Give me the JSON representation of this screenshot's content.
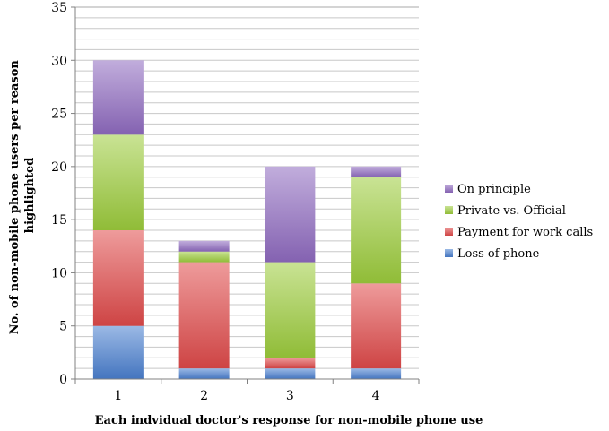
{
  "chart_data": {
    "type": "bar",
    "stacked": true,
    "categories": [
      "1",
      "2",
      "3",
      "4"
    ],
    "series": [
      {
        "name": "Loss of phone",
        "values": [
          5,
          1,
          1,
          1
        ],
        "color": "#4a7fd0"
      },
      {
        "name": "Payment for work calls",
        "values": [
          9,
          10,
          1,
          8
        ],
        "color": "#e04a4a"
      },
      {
        "name": "Private vs. Official",
        "values": [
          9,
          1,
          9,
          10
        ],
        "color": "#9ccc3c"
      },
      {
        "name": "On principle",
        "values": [
          7,
          1,
          9,
          1
        ],
        "color": "#8f6ac0"
      }
    ],
    "title": "",
    "xlabel": "Each indvidual doctor's response for non-mobile phone use",
    "ylabel": "No. of non-mobile phone users per reason highlighted",
    "ylabel_lines": [
      "No. of non-mobile phone users per reason",
      "highlighted"
    ],
    "ylim": [
      0,
      35
    ],
    "yticks": [
      0,
      5,
      10,
      15,
      20,
      25,
      30,
      35
    ],
    "grid": true,
    "legend_position": "right"
  }
}
